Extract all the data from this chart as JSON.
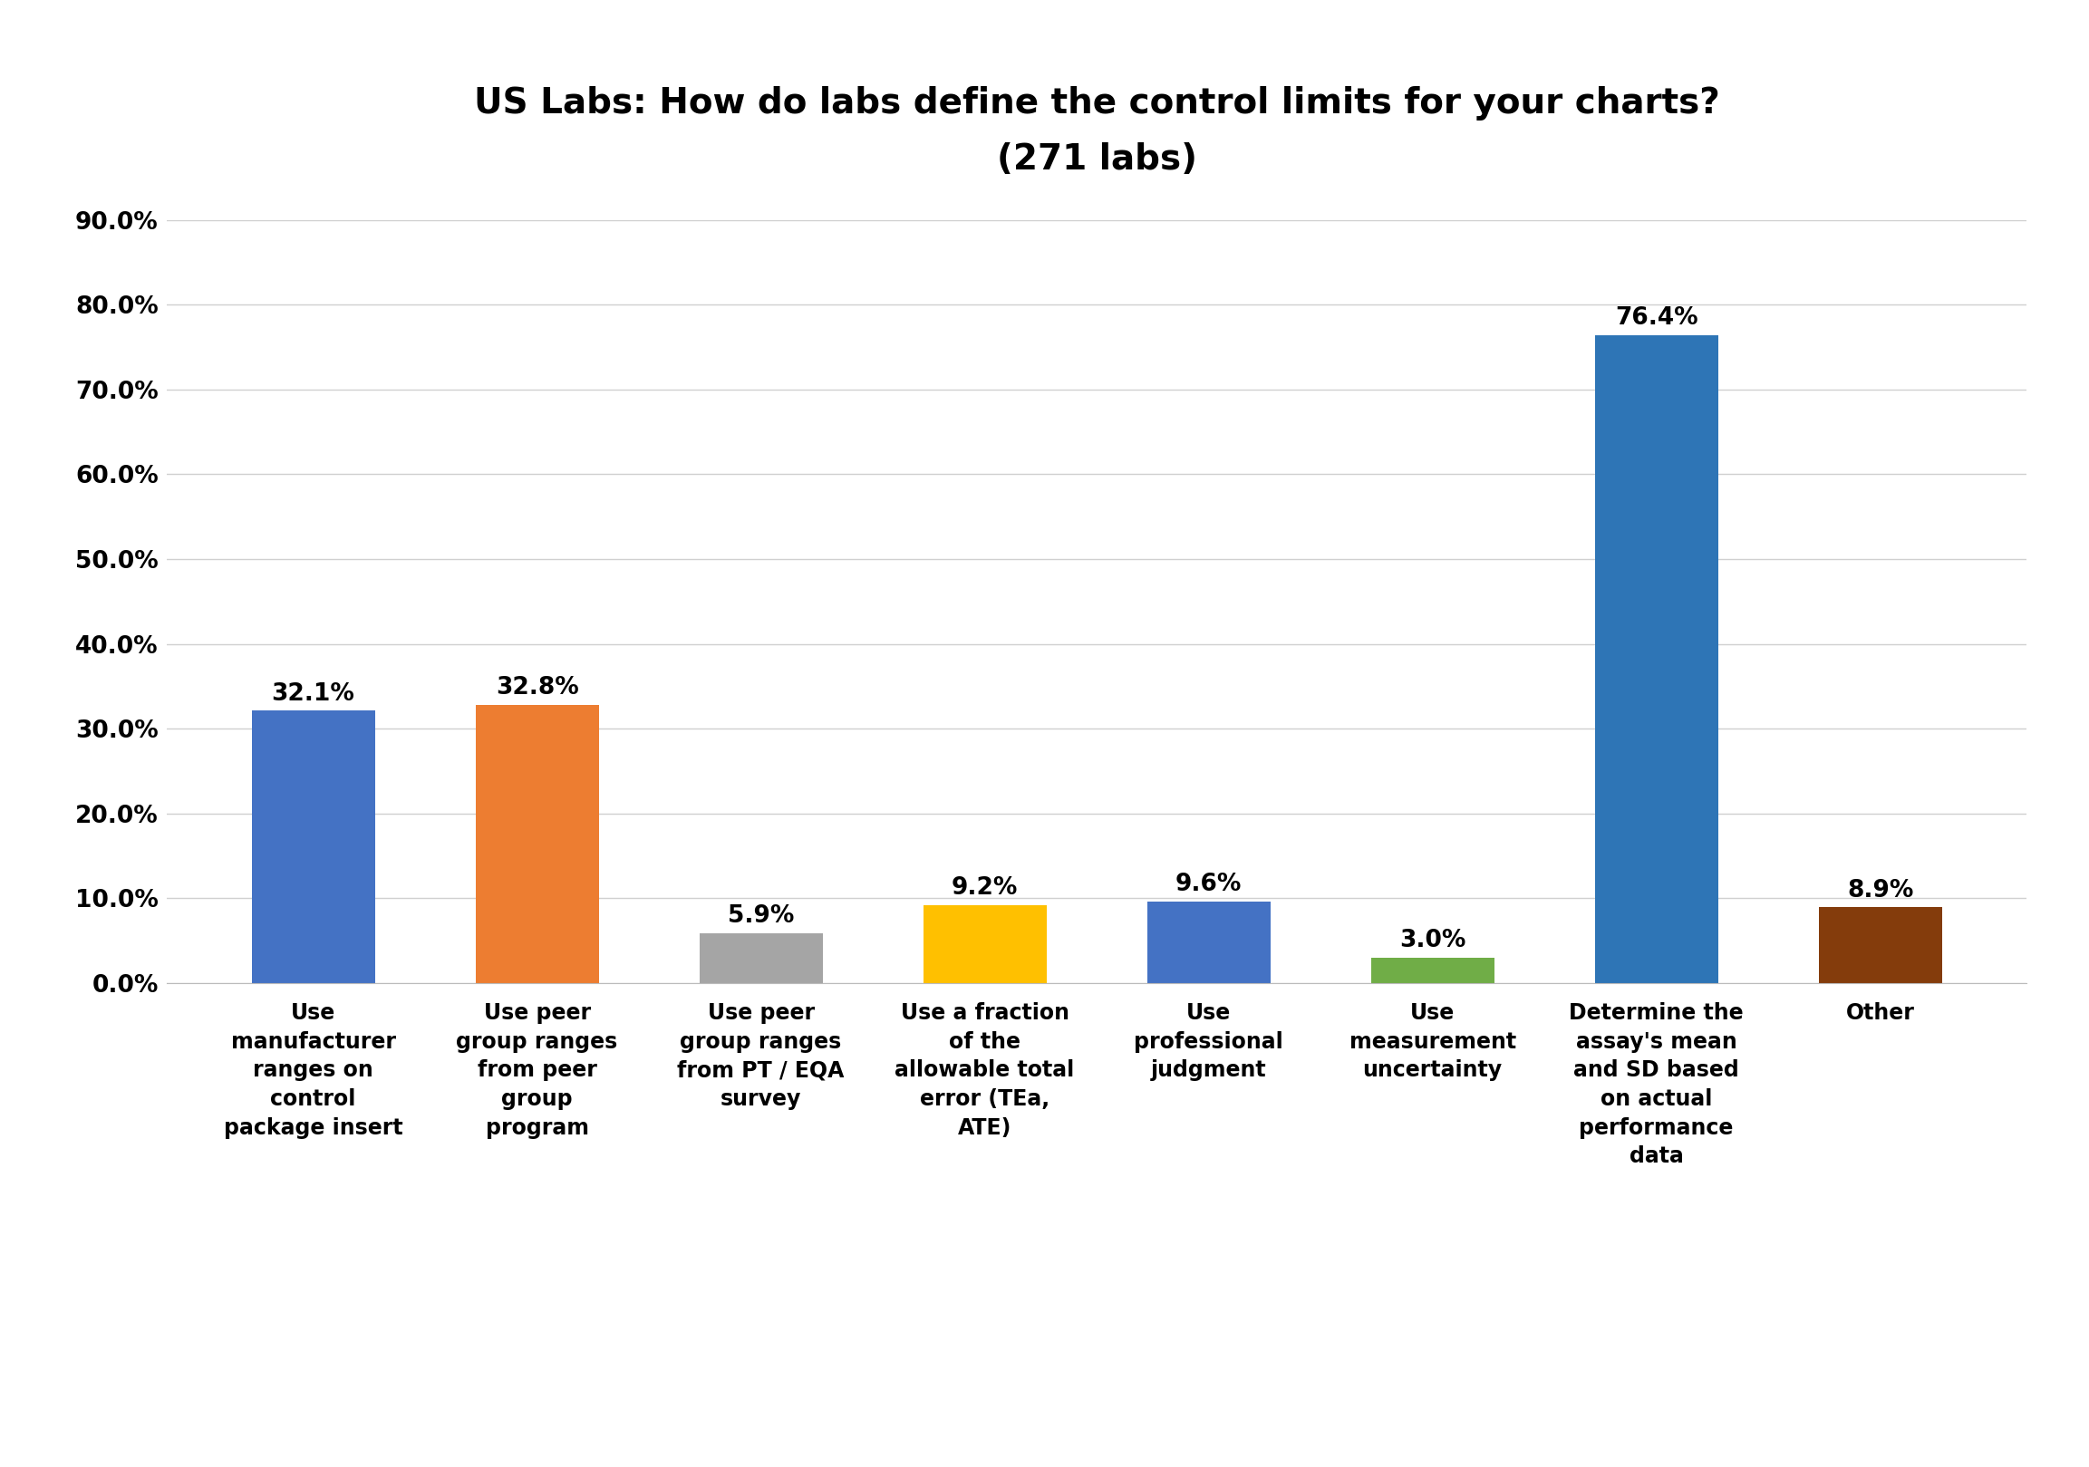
{
  "title": "US Labs: How do labs define the control limits for your charts?\n(271 labs)",
  "categories": [
    "Use\nmanufacturer\nranges on\ncontrol\npackage insert",
    "Use peer\ngroup ranges\nfrom peer\ngroup\nprogram",
    "Use peer\ngroup ranges\nfrom PT / EQA\nsurvey",
    "Use a fraction\nof the\nallowable total\nerror (TEa,\nATE)",
    "Use\nprofessional\njudgment",
    "Use\nmeasurement\nuncertainty",
    "Determine the\nassay's mean\nand SD based\non actual\nperformance\ndata",
    "Other"
  ],
  "values": [
    32.1,
    32.8,
    5.9,
    9.2,
    9.6,
    3.0,
    76.4,
    8.9
  ],
  "bar_colors": [
    "#4472C4",
    "#ED7D31",
    "#A5A5A5",
    "#FFC000",
    "#4472C4",
    "#70AD47",
    "#2E75B6",
    "#843C0C"
  ],
  "value_labels": [
    "32.1%",
    "32.8%",
    "5.9%",
    "9.2%",
    "9.6%",
    "3.0%",
    "76.4%",
    "8.9%"
  ],
  "ylim": [
    0,
    90
  ],
  "yticks": [
    0,
    10,
    20,
    30,
    40,
    50,
    60,
    70,
    80,
    90
  ],
  "ytick_labels": [
    "0.0%",
    "10.0%",
    "20.0%",
    "30.0%",
    "40.0%",
    "50.0%",
    "60.0%",
    "70.0%",
    "80.0%",
    "90.0%"
  ],
  "background_color": "#FFFFFF",
  "grid_color": "#D0D0D0",
  "title_fontsize": 28,
  "label_fontsize": 17,
  "tick_fontsize": 19,
  "value_fontsize": 19
}
